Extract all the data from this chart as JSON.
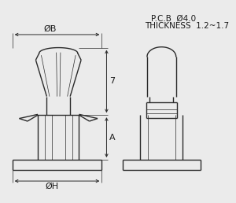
{
  "bg_color": "#ebebeb",
  "line_color": "#2a2a2a",
  "line_width": 1.0,
  "thin_line": 0.5,
  "text_color": "#1a1a1a",
  "title_line1": "P.C.B  Ø4.0",
  "title_line2": "THICKNESS  1.2~1.7",
  "label_B": "ØB",
  "label_H": "ØH",
  "label_7": "7",
  "label_A": "A"
}
